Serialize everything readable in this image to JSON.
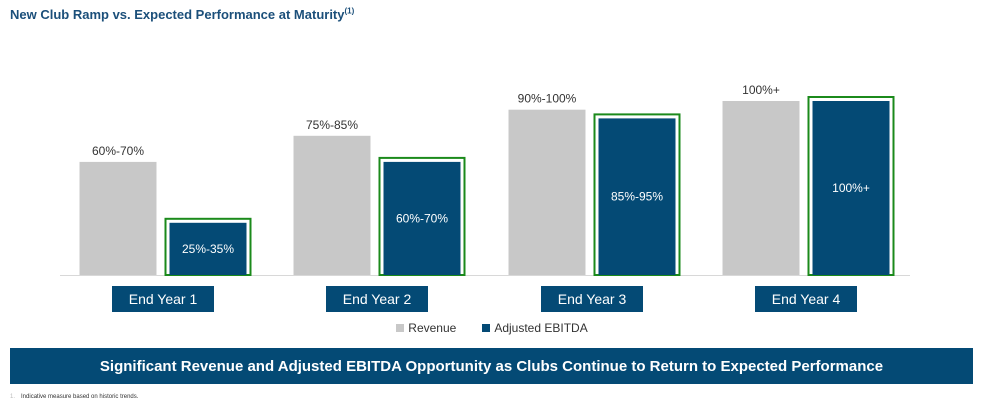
{
  "header": {
    "title": "New Club Ramp vs. Expected Performance at Maturity",
    "title_sup": "(1)"
  },
  "colors": {
    "revenue": "#c8c8c8",
    "ebitda": "#044a75",
    "highlight": "#1b8a1b",
    "title": "#1b4f7a",
    "label_box": "#044a75"
  },
  "chart_data": {
    "type": "bar",
    "categories": [
      "End Year 1",
      "End Year 2",
      "End Year 3",
      "End Year 4"
    ],
    "series": [
      {
        "name": "Revenue",
        "values": [
          65,
          80,
          95,
          100
        ],
        "labels": [
          "60%-70%",
          "75%-85%",
          "90%-100%",
          "100%+"
        ]
      },
      {
        "name": "Adjusted EBITDA",
        "values": [
          30,
          65,
          90,
          100
        ],
        "labels": [
          "25%-35%",
          "60%-70%",
          "85%-95%",
          "100%+"
        ]
      }
    ],
    "ylim": [
      0,
      100
    ],
    "grid": false,
    "legend": "bottom-center"
  },
  "banner": {
    "text": "Significant Revenue and Adjusted EBITDA Opportunity as Clubs Continue to Return to Expected Performance"
  },
  "footnote": {
    "marker": "1.",
    "text": "Indicative measure based on historic trends."
  }
}
